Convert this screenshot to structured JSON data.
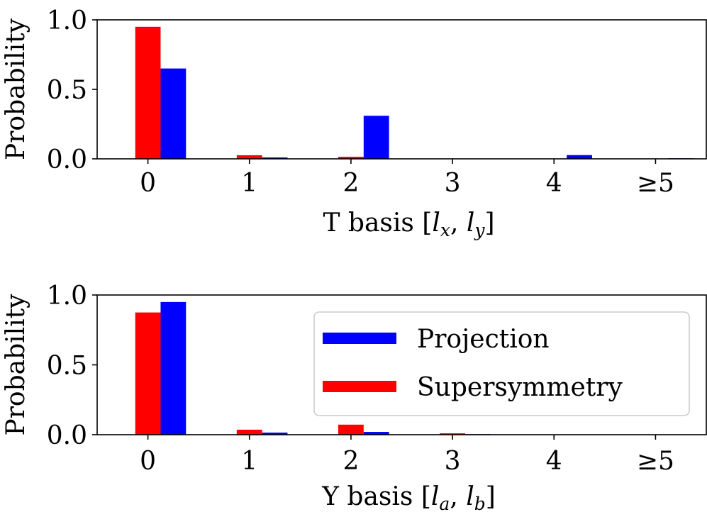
{
  "chart_data": [
    {
      "type": "bar",
      "xlabel": "T basis [l_x, l_y]",
      "xlabel_parts": {
        "prefix": "T basis [",
        "a": "l",
        "a_sub": "x",
        "sep": ", ",
        "b": "l",
        "b_sub": "y",
        "suffix": "]"
      },
      "ylabel": "Probability",
      "categories": [
        "0",
        "1",
        "2",
        "3",
        "4",
        "≥5"
      ],
      "ylim": [
        0,
        1
      ],
      "yticks": [
        "0.0",
        "0.5",
        "1.0"
      ],
      "grid": false,
      "series": [
        {
          "name": "Supersymmetry",
          "color": "#ff0000",
          "values": [
            0.95,
            0.026,
            0.015,
            0.0,
            0.0,
            0.0
          ]
        },
        {
          "name": "Projection",
          "color": "#0000ff",
          "values": [
            0.65,
            0.01,
            0.31,
            0.0,
            0.027,
            0.004
          ]
        }
      ]
    },
    {
      "type": "bar",
      "xlabel": "Y basis [l_a, l_b]",
      "xlabel_parts": {
        "prefix": "Y basis [",
        "a": "l",
        "a_sub": "a",
        "sep": ", ",
        "b": "l",
        "b_sub": "b",
        "suffix": "]"
      },
      "ylabel": "Probability",
      "categories": [
        "0",
        "1",
        "2",
        "3",
        "4",
        "≥5"
      ],
      "ylim": [
        0,
        1
      ],
      "yticks": [
        "0.0",
        "0.5",
        "1.0"
      ],
      "grid": false,
      "legend": {
        "placement": "right",
        "entries": [
          {
            "label": "Projection",
            "color": "#0000ff"
          },
          {
            "label": "Supersymmetry",
            "color": "#ff0000"
          }
        ]
      },
      "series": [
        {
          "name": "Supersymmetry",
          "color": "#ff0000",
          "values": [
            0.875,
            0.036,
            0.072,
            0.01,
            0.0,
            0.0
          ]
        },
        {
          "name": "Projection",
          "color": "#0000ff",
          "values": [
            0.95,
            0.015,
            0.02,
            0.004,
            0.0,
            0.0
          ]
        }
      ]
    }
  ]
}
